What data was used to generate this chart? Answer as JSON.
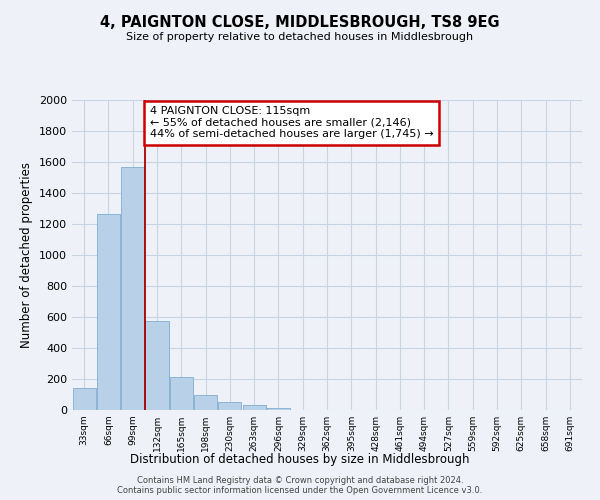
{
  "title": "4, PAIGNTON CLOSE, MIDDLESBROUGH, TS8 9EG",
  "subtitle": "Size of property relative to detached houses in Middlesbrough",
  "xlabel": "Distribution of detached houses by size in Middlesbrough",
  "ylabel": "Number of detached properties",
  "bar_values": [
    140,
    1265,
    1570,
    575,
    215,
    95,
    50,
    30,
    10,
    0,
    0,
    0,
    0,
    0,
    0,
    0,
    0,
    0,
    0,
    0,
    0
  ],
  "bar_labels": [
    "33sqm",
    "66sqm",
    "99sqm",
    "132sqm",
    "165sqm",
    "198sqm",
    "230sqm",
    "263sqm",
    "296sqm",
    "329sqm",
    "362sqm",
    "395sqm",
    "428sqm",
    "461sqm",
    "494sqm",
    "527sqm",
    "559sqm",
    "592sqm",
    "625sqm",
    "658sqm",
    "691sqm"
  ],
  "bar_color": "#b8d0e8",
  "bar_edge_color": "#8ab4d4",
  "grid_color": "#c8d4e4",
  "property_line_x": 2.5,
  "annotation_title": "4 PAIGNTON CLOSE: 115sqm",
  "annotation_line1": "← 55% of detached houses are smaller (2,146)",
  "annotation_line2": "44% of semi-detached houses are larger (1,745) →",
  "annotation_box_color": "#ffffff",
  "annotation_box_edge": "#cc0000",
  "ylim": [
    0,
    2000
  ],
  "yticks": [
    0,
    200,
    400,
    600,
    800,
    1000,
    1200,
    1400,
    1600,
    1800,
    2000
  ],
  "footer_line1": "Contains HM Land Registry data © Crown copyright and database right 2024.",
  "footer_line2": "Contains public sector information licensed under the Open Government Licence v3.0.",
  "bg_color": "#eef2f8"
}
